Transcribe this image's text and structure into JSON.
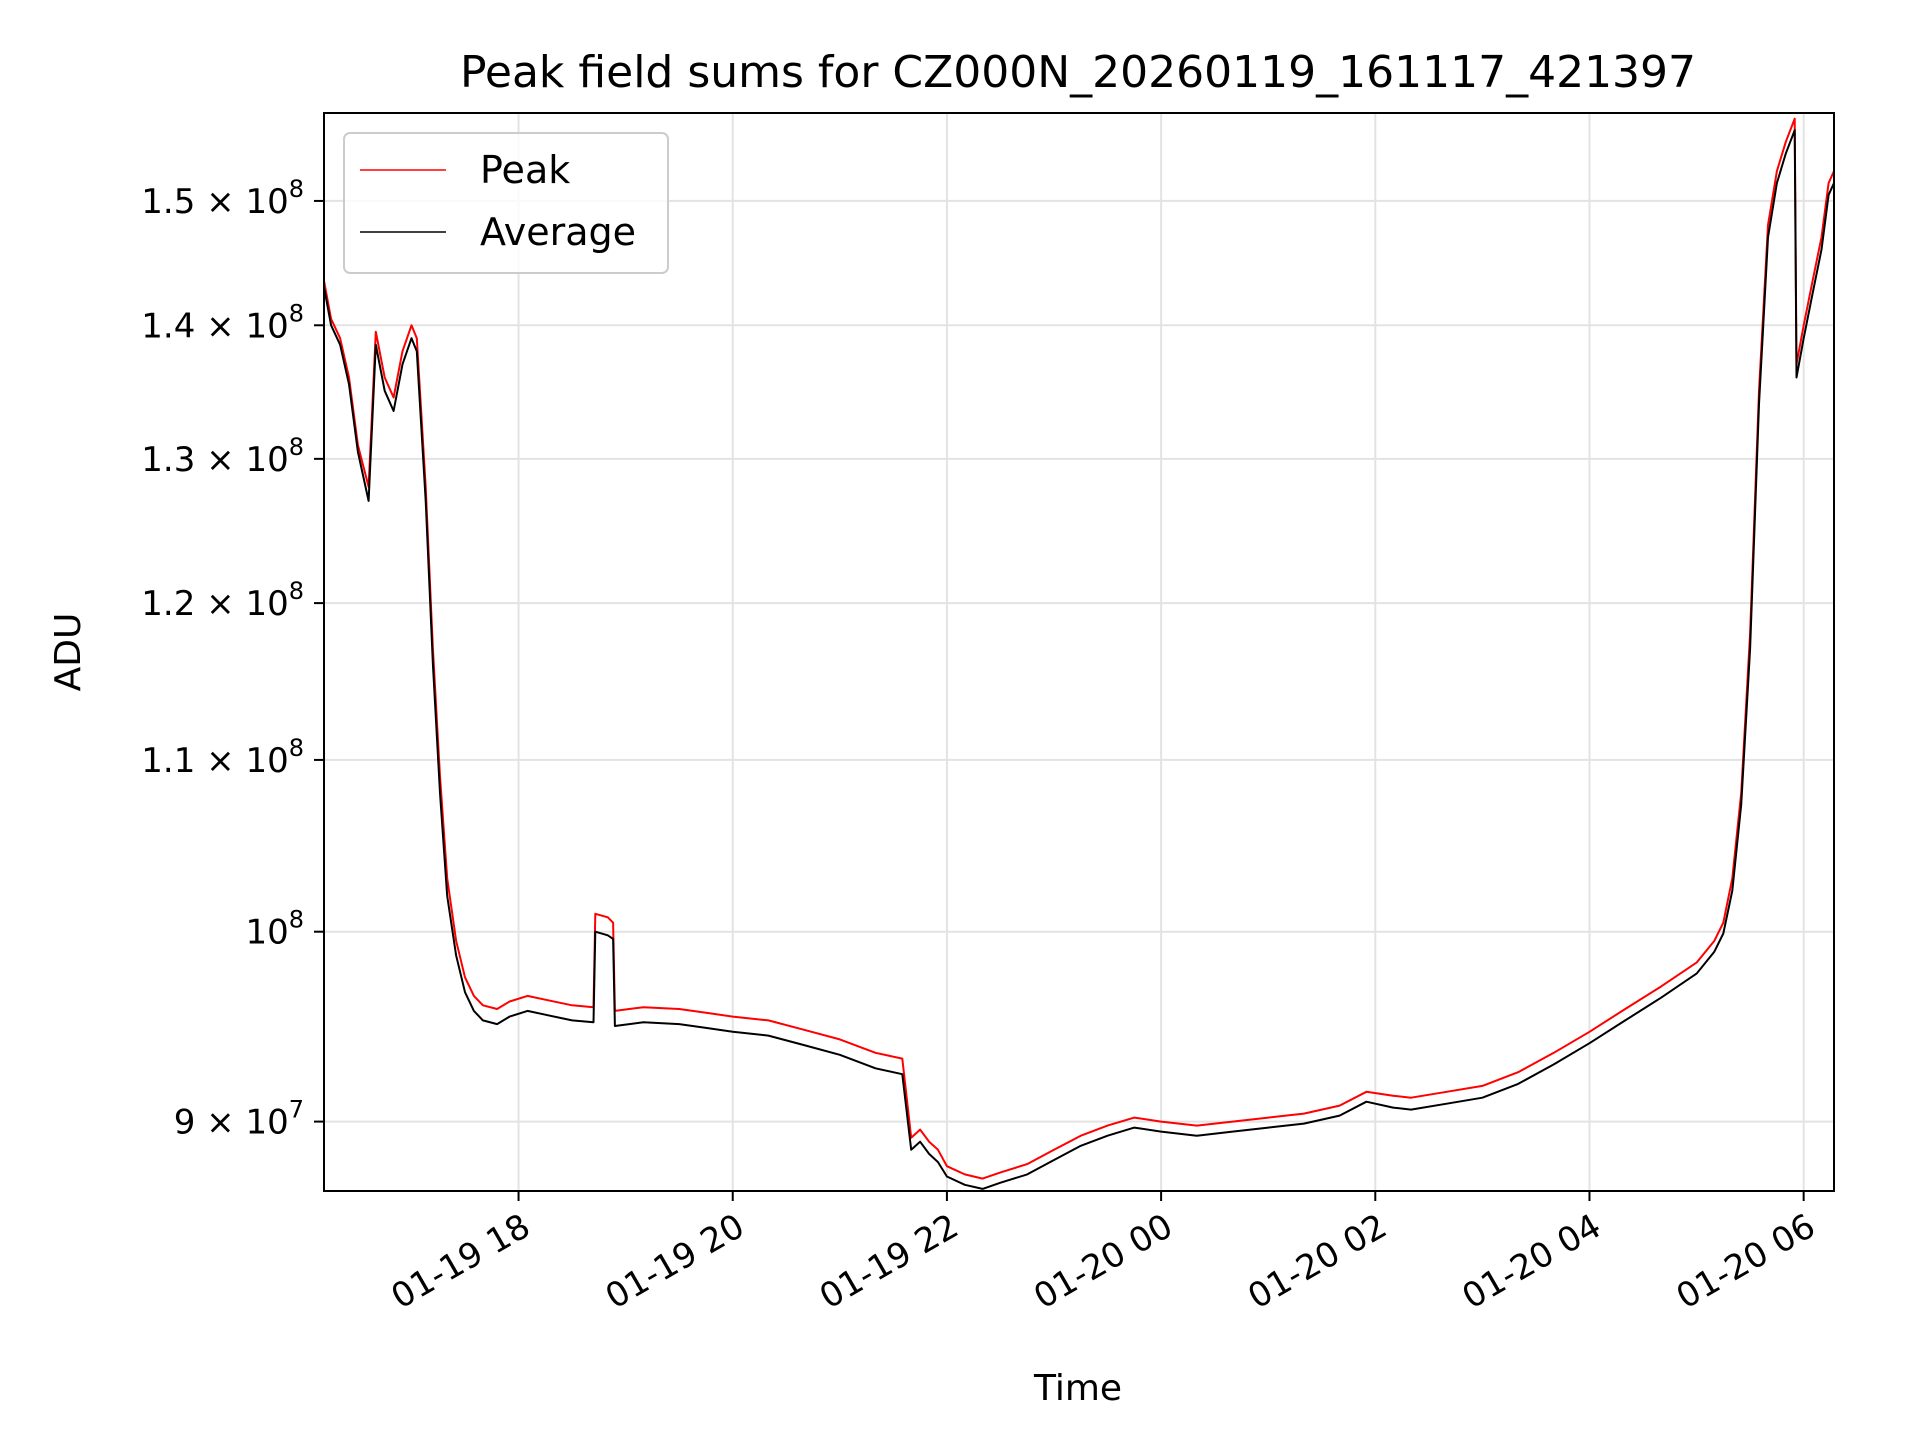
{
  "chart_data": {
    "type": "line",
    "title": "Peak field sums for CZ000N_20260119_161117_421397",
    "xlabel": "Time",
    "ylabel": "ADU",
    "y_scale": "log",
    "grid": true,
    "legend_position": "upper-left",
    "xlim": [
      "2026-01-19 16:11",
      "2026-01-20 06:17"
    ],
    "ylim": [
      86600000,
      157500000
    ],
    "x_ticks": [
      {
        "t": "2026-01-19 18:00",
        "label": "01-19 18"
      },
      {
        "t": "2026-01-19 20:00",
        "label": "01-19 20"
      },
      {
        "t": "2026-01-19 22:00",
        "label": "01-19 22"
      },
      {
        "t": "2026-01-20 00:00",
        "label": "01-20 00"
      },
      {
        "t": "2026-01-20 02:00",
        "label": "01-20 02"
      },
      {
        "t": "2026-01-20 04:00",
        "label": "01-20 04"
      },
      {
        "t": "2026-01-20 06:00",
        "label": "01-20 06"
      }
    ],
    "y_ticks": [
      {
        "value": 90000000,
        "label": "9 × 10",
        "exp": "7"
      },
      {
        "value": 100000000,
        "label": "10",
        "exp": "8"
      },
      {
        "value": 110000000,
        "label": "1.1 × 10",
        "exp": "8"
      },
      {
        "value": 120000000,
        "label": "1.2 × 10",
        "exp": "8"
      },
      {
        "value": 130000000,
        "label": "1.3 × 10",
        "exp": "8"
      },
      {
        "value": 140000000,
        "label": "1.4 × 10",
        "exp": "8"
      },
      {
        "value": 150000000,
        "label": "1.5 × 10",
        "exp": "8"
      }
    ],
    "series": [
      {
        "name": "Peak",
        "color": "#ff0000",
        "points": [
          [
            "2026-01-19 16:11",
            143500000
          ],
          [
            "2026-01-19 16:15",
            140500000
          ],
          [
            "2026-01-19 16:20",
            139000000
          ],
          [
            "2026-01-19 16:25",
            136000000
          ],
          [
            "2026-01-19 16:30",
            131000000
          ],
          [
            "2026-01-19 16:36",
            128000000
          ],
          [
            "2026-01-19 16:40",
            139500000
          ],
          [
            "2026-01-19 16:45",
            136000000
          ],
          [
            "2026-01-19 16:50",
            134500000
          ],
          [
            "2026-01-19 16:55",
            138000000
          ],
          [
            "2026-01-19 17:00",
            140000000
          ],
          [
            "2026-01-19 17:03",
            139000000
          ],
          [
            "2026-01-19 17:08",
            128000000
          ],
          [
            "2026-01-19 17:12",
            117000000
          ],
          [
            "2026-01-19 17:16",
            109000000
          ],
          [
            "2026-01-19 17:20",
            103000000
          ],
          [
            "2026-01-19 17:25",
            99500000
          ],
          [
            "2026-01-19 17:30",
            97500000
          ],
          [
            "2026-01-19 17:35",
            96500000
          ],
          [
            "2026-01-19 17:40",
            96000000
          ],
          [
            "2026-01-19 17:48",
            95800000
          ],
          [
            "2026-01-19 17:55",
            96200000
          ],
          [
            "2026-01-19 18:05",
            96500000
          ],
          [
            "2026-01-19 18:15",
            96300000
          ],
          [
            "2026-01-19 18:30",
            96000000
          ],
          [
            "2026-01-19 18:42",
            95900000
          ],
          [
            "2026-01-19 18:43",
            101000000
          ],
          [
            "2026-01-19 18:50",
            100800000
          ],
          [
            "2026-01-19 18:53",
            100500000
          ],
          [
            "2026-01-19 18:54",
            95700000
          ],
          [
            "2026-01-19 19:10",
            95900000
          ],
          [
            "2026-01-19 19:30",
            95800000
          ],
          [
            "2026-01-19 19:45",
            95600000
          ],
          [
            "2026-01-19 20:00",
            95400000
          ],
          [
            "2026-01-19 20:20",
            95200000
          ],
          [
            "2026-01-19 20:40",
            94700000
          ],
          [
            "2026-01-19 21:00",
            94200000
          ],
          [
            "2026-01-19 21:20",
            93500000
          ],
          [
            "2026-01-19 21:35",
            93200000
          ],
          [
            "2026-01-19 21:40",
            89200000
          ],
          [
            "2026-01-19 21:45",
            89600000
          ],
          [
            "2026-01-19 21:50",
            89000000
          ],
          [
            "2026-01-19 21:55",
            88600000
          ],
          [
            "2026-01-19 22:00",
            87800000
          ],
          [
            "2026-01-19 22:10",
            87400000
          ],
          [
            "2026-01-19 22:20",
            87200000
          ],
          [
            "2026-01-19 22:30",
            87500000
          ],
          [
            "2026-01-19 22:45",
            87900000
          ],
          [
            "2026-01-19 23:00",
            88600000
          ],
          [
            "2026-01-19 23:15",
            89300000
          ],
          [
            "2026-01-19 23:30",
            89800000
          ],
          [
            "2026-01-19 23:45",
            90200000
          ],
          [
            "2026-01-20 00:00",
            90000000
          ],
          [
            "2026-01-20 00:20",
            89800000
          ],
          [
            "2026-01-20 00:40",
            90000000
          ],
          [
            "2026-01-20 01:00",
            90200000
          ],
          [
            "2026-01-20 01:20",
            90400000
          ],
          [
            "2026-01-20 01:40",
            90800000
          ],
          [
            "2026-01-20 01:55",
            91500000
          ],
          [
            "2026-01-20 02:10",
            91300000
          ],
          [
            "2026-01-20 02:20",
            91200000
          ],
          [
            "2026-01-20 02:40",
            91500000
          ],
          [
            "2026-01-20 03:00",
            91800000
          ],
          [
            "2026-01-20 03:20",
            92500000
          ],
          [
            "2026-01-20 03:40",
            93500000
          ],
          [
            "2026-01-20 04:00",
            94600000
          ],
          [
            "2026-01-20 04:20",
            95800000
          ],
          [
            "2026-01-20 04:40",
            97000000
          ],
          [
            "2026-01-20 05:00",
            98300000
          ],
          [
            "2026-01-20 05:10",
            99500000
          ],
          [
            "2026-01-20 05:15",
            100500000
          ],
          [
            "2026-01-20 05:20",
            103000000
          ],
          [
            "2026-01-20 05:25",
            108000000
          ],
          [
            "2026-01-20 05:30",
            118000000
          ],
          [
            "2026-01-20 05:35",
            135000000
          ],
          [
            "2026-01-20 05:40",
            148000000
          ],
          [
            "2026-01-20 05:45",
            152500000
          ],
          [
            "2026-01-20 05:50",
            155000000
          ],
          [
            "2026-01-20 05:55",
            157000000
          ],
          [
            "2026-01-20 05:56",
            137000000
          ],
          [
            "2026-01-20 06:00",
            140000000
          ],
          [
            "2026-01-20 06:05",
            143500000
          ],
          [
            "2026-01-20 06:10",
            147000000
          ],
          [
            "2026-01-20 06:14",
            151500000
          ],
          [
            "2026-01-20 06:17",
            152500000
          ]
        ]
      },
      {
        "name": "Average",
        "color": "#000000",
        "points": [
          [
            "2026-01-19 16:11",
            143000000
          ],
          [
            "2026-01-19 16:15",
            140000000
          ],
          [
            "2026-01-19 16:20",
            138500000
          ],
          [
            "2026-01-19 16:25",
            135500000
          ],
          [
            "2026-01-19 16:30",
            130500000
          ],
          [
            "2026-01-19 16:36",
            127000000
          ],
          [
            "2026-01-19 16:40",
            138500000
          ],
          [
            "2026-01-19 16:45",
            135000000
          ],
          [
            "2026-01-19 16:50",
            133500000
          ],
          [
            "2026-01-19 16:55",
            137000000
          ],
          [
            "2026-01-19 17:00",
            139000000
          ],
          [
            "2026-01-19 17:03",
            138000000
          ],
          [
            "2026-01-19 17:08",
            127000000
          ],
          [
            "2026-01-19 17:12",
            116000000
          ],
          [
            "2026-01-19 17:16",
            108000000
          ],
          [
            "2026-01-19 17:20",
            102000000
          ],
          [
            "2026-01-19 17:25",
            98700000
          ],
          [
            "2026-01-19 17:30",
            96700000
          ],
          [
            "2026-01-19 17:35",
            95700000
          ],
          [
            "2026-01-19 17:40",
            95200000
          ],
          [
            "2026-01-19 17:48",
            95000000
          ],
          [
            "2026-01-19 17:55",
            95400000
          ],
          [
            "2026-01-19 18:05",
            95700000
          ],
          [
            "2026-01-19 18:15",
            95500000
          ],
          [
            "2026-01-19 18:30",
            95200000
          ],
          [
            "2026-01-19 18:42",
            95100000
          ],
          [
            "2026-01-19 18:43",
            100000000
          ],
          [
            "2026-01-19 18:50",
            99800000
          ],
          [
            "2026-01-19 18:53",
            99600000
          ],
          [
            "2026-01-19 18:54",
            94900000
          ],
          [
            "2026-01-19 19:10",
            95100000
          ],
          [
            "2026-01-19 19:30",
            95000000
          ],
          [
            "2026-01-19 19:45",
            94800000
          ],
          [
            "2026-01-19 20:00",
            94600000
          ],
          [
            "2026-01-19 20:20",
            94400000
          ],
          [
            "2026-01-19 20:40",
            93900000
          ],
          [
            "2026-01-19 21:00",
            93400000
          ],
          [
            "2026-01-19 21:20",
            92700000
          ],
          [
            "2026-01-19 21:35",
            92400000
          ],
          [
            "2026-01-19 21:40",
            88600000
          ],
          [
            "2026-01-19 21:45",
            89000000
          ],
          [
            "2026-01-19 21:50",
            88400000
          ],
          [
            "2026-01-19 21:55",
            88000000
          ],
          [
            "2026-01-19 22:00",
            87300000
          ],
          [
            "2026-01-19 22:10",
            86900000
          ],
          [
            "2026-01-19 22:20",
            86700000
          ],
          [
            "2026-01-19 22:30",
            87000000
          ],
          [
            "2026-01-19 22:45",
            87400000
          ],
          [
            "2026-01-19 23:00",
            88100000
          ],
          [
            "2026-01-19 23:15",
            88800000
          ],
          [
            "2026-01-19 23:30",
            89300000
          ],
          [
            "2026-01-19 23:45",
            89700000
          ],
          [
            "2026-01-20 00:00",
            89500000
          ],
          [
            "2026-01-20 00:20",
            89300000
          ],
          [
            "2026-01-20 00:40",
            89500000
          ],
          [
            "2026-01-20 01:00",
            89700000
          ],
          [
            "2026-01-20 01:20",
            89900000
          ],
          [
            "2026-01-20 01:40",
            90300000
          ],
          [
            "2026-01-20 01:55",
            91000000
          ],
          [
            "2026-01-20 02:10",
            90700000
          ],
          [
            "2026-01-20 02:20",
            90600000
          ],
          [
            "2026-01-20 02:40",
            90900000
          ],
          [
            "2026-01-20 03:00",
            91200000
          ],
          [
            "2026-01-20 03:20",
            91900000
          ],
          [
            "2026-01-20 03:40",
            92900000
          ],
          [
            "2026-01-20 04:00",
            94000000
          ],
          [
            "2026-01-20 04:20",
            95200000
          ],
          [
            "2026-01-20 04:40",
            96400000
          ],
          [
            "2026-01-20 05:00",
            97700000
          ],
          [
            "2026-01-20 05:10",
            98900000
          ],
          [
            "2026-01-20 05:15",
            99900000
          ],
          [
            "2026-01-20 05:20",
            102300000
          ],
          [
            "2026-01-20 05:25",
            107300000
          ],
          [
            "2026-01-20 05:30",
            117000000
          ],
          [
            "2026-01-20 05:35",
            134000000
          ],
          [
            "2026-01-20 05:40",
            147000000
          ],
          [
            "2026-01-20 05:45",
            151500000
          ],
          [
            "2026-01-20 05:50",
            154000000
          ],
          [
            "2026-01-20 05:55",
            156000000
          ],
          [
            "2026-01-20 05:56",
            136000000
          ],
          [
            "2026-01-20 06:00",
            139000000
          ],
          [
            "2026-01-20 06:05",
            142500000
          ],
          [
            "2026-01-20 06:10",
            146000000
          ],
          [
            "2026-01-20 06:14",
            150500000
          ],
          [
            "2026-01-20 06:17",
            151500000
          ]
        ]
      }
    ]
  }
}
